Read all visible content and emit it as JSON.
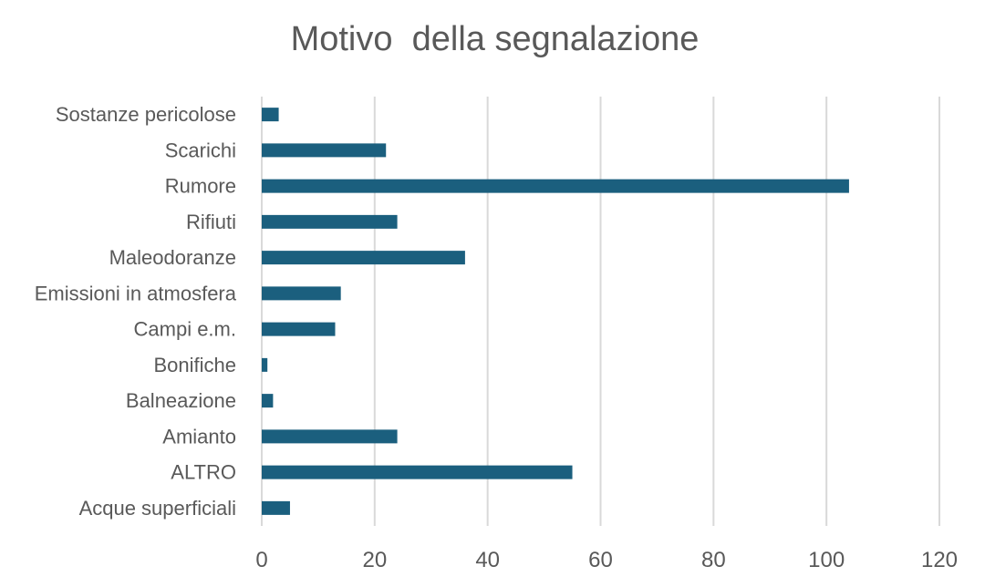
{
  "chart_data": {
    "type": "bar",
    "orientation": "horizontal",
    "title": "Motivo  della segnalazione",
    "categories": [
      "Acque superficiali",
      "ALTRO",
      "Amianto",
      "Balneazione",
      "Bonifiche",
      "Campi e.m.",
      "Emissioni in atmosfera",
      "Maleodoranze",
      "Rifiuti",
      "Rumore",
      "Scarichi",
      "Sostanze pericolose"
    ],
    "values": [
      5,
      55,
      24,
      2,
      1,
      13,
      14,
      36,
      24,
      104,
      22,
      3
    ],
    "xlim": [
      0,
      120
    ],
    "xticks": [
      0,
      20,
      40,
      60,
      80,
      100,
      120
    ],
    "xlabel": "",
    "ylabel": "",
    "grid": true,
    "legend": "none",
    "bar_color": "#1b5f7e"
  }
}
